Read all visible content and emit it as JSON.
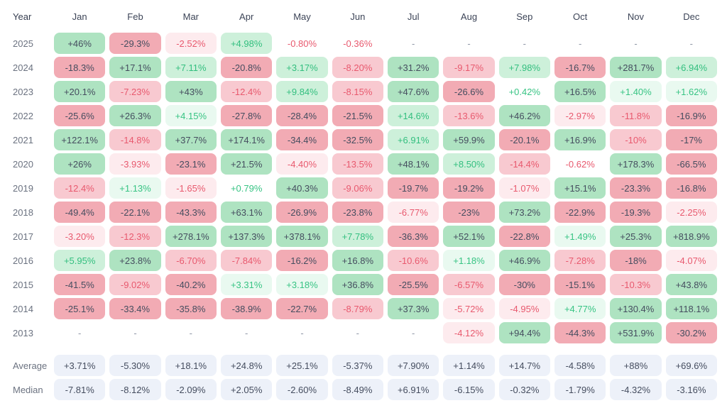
{
  "colors": {
    "green_strong_bg": "#aee3c1",
    "green_light_bg": "#cdf0da",
    "green_faint_bg": "#e9f9f0",
    "green_text": "#38c484",
    "red_strong_bg": "#f2abb4",
    "red_light_bg": "#f8c9d0",
    "red_faint_bg": "#fdebee",
    "red_text": "#e8596e",
    "dark_text": "#454d5f",
    "summary_bg": "#edf1f9",
    "label_text": "#6b7280"
  },
  "chart_data": {
    "type": "heatmap",
    "title": "Monthly returns heatmap by year",
    "year_label": "Year",
    "columns": [
      "Jan",
      "Feb",
      "Mar",
      "Apr",
      "May",
      "Jun",
      "Jul",
      "Aug",
      "Sep",
      "Oct",
      "Nov",
      "Dec"
    ],
    "legend_note": "cell classes: g3/r3 strong tint with dark text, g2/r2 light tint, g1/r1 faint tint, wg/wr white bg colored text, dash = no data, sum = summary row",
    "rows": [
      {
        "label": "2025",
        "summary": false,
        "cells": [
          {
            "v": "+46%",
            "c": "g3"
          },
          {
            "v": "-29.3%",
            "c": "r3"
          },
          {
            "v": "-2.52%",
            "c": "r1"
          },
          {
            "v": "+4.98%",
            "c": "g2"
          },
          {
            "v": "-0.80%",
            "c": "wr"
          },
          {
            "v": "-0.36%",
            "c": "wr"
          },
          {
            "v": "-",
            "c": "dash"
          },
          {
            "v": "-",
            "c": "dash"
          },
          {
            "v": "-",
            "c": "dash"
          },
          {
            "v": "-",
            "c": "dash"
          },
          {
            "v": "-",
            "c": "dash"
          },
          {
            "v": "-",
            "c": "dash"
          }
        ]
      },
      {
        "label": "2024",
        "summary": false,
        "cells": [
          {
            "v": "-18.3%",
            "c": "r3"
          },
          {
            "v": "+17.1%",
            "c": "g3"
          },
          {
            "v": "+7.11%",
            "c": "g2"
          },
          {
            "v": "-20.8%",
            "c": "r3"
          },
          {
            "v": "+3.17%",
            "c": "g2"
          },
          {
            "v": "-8.20%",
            "c": "r2"
          },
          {
            "v": "+31.2%",
            "c": "g3"
          },
          {
            "v": "-9.17%",
            "c": "r2"
          },
          {
            "v": "+7.98%",
            "c": "g2"
          },
          {
            "v": "-16.7%",
            "c": "r3"
          },
          {
            "v": "+281.7%",
            "c": "g3"
          },
          {
            "v": "+6.94%",
            "c": "g2"
          }
        ]
      },
      {
        "label": "2023",
        "summary": false,
        "cells": [
          {
            "v": "+20.1%",
            "c": "g3"
          },
          {
            "v": "-7.23%",
            "c": "r2"
          },
          {
            "v": "+43%",
            "c": "g3"
          },
          {
            "v": "-12.4%",
            "c": "r2"
          },
          {
            "v": "+9.84%",
            "c": "g2"
          },
          {
            "v": "-8.15%",
            "c": "r2"
          },
          {
            "v": "+47.6%",
            "c": "g3"
          },
          {
            "v": "-26.6%",
            "c": "r3"
          },
          {
            "v": "+0.42%",
            "c": "wg"
          },
          {
            "v": "+16.5%",
            "c": "g3"
          },
          {
            "v": "+1.40%",
            "c": "g1"
          },
          {
            "v": "+1.62%",
            "c": "g1"
          }
        ]
      },
      {
        "label": "2022",
        "summary": false,
        "cells": [
          {
            "v": "-25.6%",
            "c": "r3"
          },
          {
            "v": "+26.3%",
            "c": "g3"
          },
          {
            "v": "+4.15%",
            "c": "g1"
          },
          {
            "v": "-27.8%",
            "c": "r3"
          },
          {
            "v": "-28.4%",
            "c": "r3"
          },
          {
            "v": "-21.5%",
            "c": "r3"
          },
          {
            "v": "+14.6%",
            "c": "g2"
          },
          {
            "v": "-13.6%",
            "c": "r2"
          },
          {
            "v": "+46.2%",
            "c": "g3"
          },
          {
            "v": "-2.97%",
            "c": "r1"
          },
          {
            "v": "-11.8%",
            "c": "r2"
          },
          {
            "v": "-16.9%",
            "c": "r3"
          }
        ]
      },
      {
        "label": "2021",
        "summary": false,
        "cells": [
          {
            "v": "+122.1%",
            "c": "g3"
          },
          {
            "v": "-14.8%",
            "c": "r2"
          },
          {
            "v": "+37.7%",
            "c": "g3"
          },
          {
            "v": "+174.1%",
            "c": "g3"
          },
          {
            "v": "-34.4%",
            "c": "r3"
          },
          {
            "v": "-32.5%",
            "c": "r3"
          },
          {
            "v": "+6.91%",
            "c": "g2"
          },
          {
            "v": "+59.9%",
            "c": "g3"
          },
          {
            "v": "-20.1%",
            "c": "r3"
          },
          {
            "v": "+16.9%",
            "c": "g3"
          },
          {
            "v": "-10%",
            "c": "r2"
          },
          {
            "v": "-17%",
            "c": "r3"
          }
        ]
      },
      {
        "label": "2020",
        "summary": false,
        "cells": [
          {
            "v": "+26%",
            "c": "g3"
          },
          {
            "v": "-3.93%",
            "c": "r1"
          },
          {
            "v": "-23.1%",
            "c": "r3"
          },
          {
            "v": "+21.5%",
            "c": "g3"
          },
          {
            "v": "-4.40%",
            "c": "r1"
          },
          {
            "v": "-13.5%",
            "c": "r2"
          },
          {
            "v": "+48.1%",
            "c": "g3"
          },
          {
            "v": "+8.50%",
            "c": "g2"
          },
          {
            "v": "-14.4%",
            "c": "r2"
          },
          {
            "v": "-0.62%",
            "c": "wr"
          },
          {
            "v": "+178.3%",
            "c": "g3"
          },
          {
            "v": "-66.5%",
            "c": "r3"
          }
        ]
      },
      {
        "label": "2019",
        "summary": false,
        "cells": [
          {
            "v": "-12.4%",
            "c": "r2"
          },
          {
            "v": "+1.13%",
            "c": "g1"
          },
          {
            "v": "-1.65%",
            "c": "r1"
          },
          {
            "v": "+0.79%",
            "c": "wg"
          },
          {
            "v": "+40.3%",
            "c": "g3"
          },
          {
            "v": "-9.06%",
            "c": "r2"
          },
          {
            "v": "-19.7%",
            "c": "r3"
          },
          {
            "v": "-19.2%",
            "c": "r3"
          },
          {
            "v": "-1.07%",
            "c": "r1"
          },
          {
            "v": "+15.1%",
            "c": "g3"
          },
          {
            "v": "-23.3%",
            "c": "r3"
          },
          {
            "v": "-16.8%",
            "c": "r3"
          }
        ]
      },
      {
        "label": "2018",
        "summary": false,
        "cells": [
          {
            "v": "-49.4%",
            "c": "r3"
          },
          {
            "v": "-22.1%",
            "c": "r3"
          },
          {
            "v": "-43.3%",
            "c": "r3"
          },
          {
            "v": "+63.1%",
            "c": "g3"
          },
          {
            "v": "-26.9%",
            "c": "r3"
          },
          {
            "v": "-23.8%",
            "c": "r3"
          },
          {
            "v": "-6.77%",
            "c": "r1"
          },
          {
            "v": "-23%",
            "c": "r3"
          },
          {
            "v": "+73.2%",
            "c": "g3"
          },
          {
            "v": "-22.9%",
            "c": "r3"
          },
          {
            "v": "-19.3%",
            "c": "r3"
          },
          {
            "v": "-2.25%",
            "c": "r1"
          }
        ]
      },
      {
        "label": "2017",
        "summary": false,
        "cells": [
          {
            "v": "-3.20%",
            "c": "r1"
          },
          {
            "v": "-12.3%",
            "c": "r2"
          },
          {
            "v": "+278.1%",
            "c": "g3"
          },
          {
            "v": "+137.3%",
            "c": "g3"
          },
          {
            "v": "+378.1%",
            "c": "g3"
          },
          {
            "v": "+7.78%",
            "c": "g2"
          },
          {
            "v": "-36.3%",
            "c": "r3"
          },
          {
            "v": "+52.1%",
            "c": "g3"
          },
          {
            "v": "-22.8%",
            "c": "r3"
          },
          {
            "v": "+1.49%",
            "c": "g1"
          },
          {
            "v": "+25.3%",
            "c": "g3"
          },
          {
            "v": "+818.9%",
            "c": "g3"
          }
        ]
      },
      {
        "label": "2016",
        "summary": false,
        "cells": [
          {
            "v": "+5.95%",
            "c": "g2"
          },
          {
            "v": "+23.8%",
            "c": "g3"
          },
          {
            "v": "-6.70%",
            "c": "r2"
          },
          {
            "v": "-7.84%",
            "c": "r2"
          },
          {
            "v": "-16.2%",
            "c": "r3"
          },
          {
            "v": "+16.8%",
            "c": "g3"
          },
          {
            "v": "-10.6%",
            "c": "r2"
          },
          {
            "v": "+1.18%",
            "c": "g1"
          },
          {
            "v": "+46.9%",
            "c": "g3"
          },
          {
            "v": "-7.28%",
            "c": "r2"
          },
          {
            "v": "-18%",
            "c": "r3"
          },
          {
            "v": "-4.07%",
            "c": "r1"
          }
        ]
      },
      {
        "label": "2015",
        "summary": false,
        "cells": [
          {
            "v": "-41.5%",
            "c": "r3"
          },
          {
            "v": "-9.02%",
            "c": "r2"
          },
          {
            "v": "-40.2%",
            "c": "r3"
          },
          {
            "v": "+3.31%",
            "c": "g1"
          },
          {
            "v": "+3.18%",
            "c": "g1"
          },
          {
            "v": "+36.8%",
            "c": "g3"
          },
          {
            "v": "-25.5%",
            "c": "r3"
          },
          {
            "v": "-6.57%",
            "c": "r2"
          },
          {
            "v": "-30%",
            "c": "r3"
          },
          {
            "v": "-15.1%",
            "c": "r3"
          },
          {
            "v": "-10.3%",
            "c": "r2"
          },
          {
            "v": "+43.8%",
            "c": "g3"
          }
        ]
      },
      {
        "label": "2014",
        "summary": false,
        "cells": [
          {
            "v": "-25.1%",
            "c": "r3"
          },
          {
            "v": "-33.4%",
            "c": "r3"
          },
          {
            "v": "-35.8%",
            "c": "r3"
          },
          {
            "v": "-38.9%",
            "c": "r3"
          },
          {
            "v": "-22.7%",
            "c": "r3"
          },
          {
            "v": "-8.79%",
            "c": "r2"
          },
          {
            "v": "+37.3%",
            "c": "g3"
          },
          {
            "v": "-5.72%",
            "c": "r1"
          },
          {
            "v": "-4.95%",
            "c": "r1"
          },
          {
            "v": "+4.77%",
            "c": "g1"
          },
          {
            "v": "+130.4%",
            "c": "g3"
          },
          {
            "v": "+118.1%",
            "c": "g3"
          }
        ]
      },
      {
        "label": "2013",
        "summary": false,
        "cells": [
          {
            "v": "-",
            "c": "dash"
          },
          {
            "v": "-",
            "c": "dash"
          },
          {
            "v": "-",
            "c": "dash"
          },
          {
            "v": "-",
            "c": "dash"
          },
          {
            "v": "-",
            "c": "dash"
          },
          {
            "v": "-",
            "c": "dash"
          },
          {
            "v": "-",
            "c": "dash"
          },
          {
            "v": "-4.12%",
            "c": "r1"
          },
          {
            "v": "+94.4%",
            "c": "g3"
          },
          {
            "v": "-44.3%",
            "c": "r3"
          },
          {
            "v": "+531.9%",
            "c": "g3"
          },
          {
            "v": "-30.2%",
            "c": "r3"
          }
        ]
      },
      {
        "label": "Average",
        "summary": true,
        "cells": [
          {
            "v": "+3.71%",
            "c": "sum"
          },
          {
            "v": "-5.30%",
            "c": "sum"
          },
          {
            "v": "+18.1%",
            "c": "sum"
          },
          {
            "v": "+24.8%",
            "c": "sum"
          },
          {
            "v": "+25.1%",
            "c": "sum"
          },
          {
            "v": "-5.37%",
            "c": "sum"
          },
          {
            "v": "+7.90%",
            "c": "sum"
          },
          {
            "v": "+1.14%",
            "c": "sum"
          },
          {
            "v": "+14.7%",
            "c": "sum"
          },
          {
            "v": "-4.58%",
            "c": "sum"
          },
          {
            "v": "+88%",
            "c": "sum"
          },
          {
            "v": "+69.6%",
            "c": "sum"
          }
        ]
      },
      {
        "label": "Median",
        "summary": true,
        "cells": [
          {
            "v": "-7.81%",
            "c": "sum"
          },
          {
            "v": "-8.12%",
            "c": "sum"
          },
          {
            "v": "-2.09%",
            "c": "sum"
          },
          {
            "v": "+2.05%",
            "c": "sum"
          },
          {
            "v": "-2.60%",
            "c": "sum"
          },
          {
            "v": "-8.49%",
            "c": "sum"
          },
          {
            "v": "+6.91%",
            "c": "sum"
          },
          {
            "v": "-6.15%",
            "c": "sum"
          },
          {
            "v": "-0.32%",
            "c": "sum"
          },
          {
            "v": "-1.79%",
            "c": "sum"
          },
          {
            "v": "-4.32%",
            "c": "sum"
          },
          {
            "v": "-3.16%",
            "c": "sum"
          }
        ]
      }
    ]
  }
}
